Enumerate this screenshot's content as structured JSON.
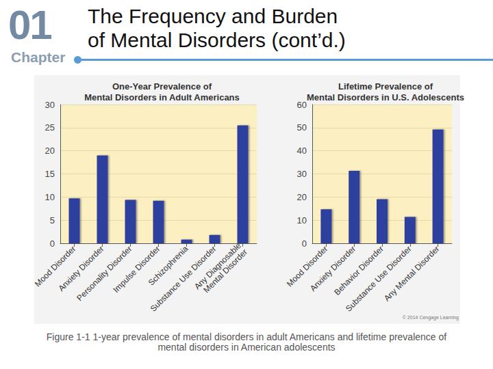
{
  "slide": {
    "chapter_number": "01",
    "chapter_label": "Chapter",
    "title_lines": [
      "The Frequency and Burden",
      "of Mental Disorders (cont’d.)"
    ],
    "caption": "Figure 1-1 1-year prevalence of mental disorders in adult Americans and lifetime prevalence of mental disorders in American adolescents",
    "credit": "© 2014 Cengage Learning"
  },
  "chart_data": [
    {
      "type": "bar",
      "title": "One-Year Prevalence of\nMental Disorders in Adult Americans",
      "categories": [
        "Mood Disorder",
        "Anxiety Disorder",
        "Personality Disorder",
        "Impulse Disorder",
        "Schizophrenia",
        "Substance Use Disorder",
        "Any Diagnosable\nMental Disorder"
      ],
      "values": [
        9.7,
        19.0,
        9.4,
        9.2,
        0.8,
        1.8,
        25.5
      ],
      "color": "#2f3f9e",
      "ylim": [
        0,
        30
      ],
      "yticks": [
        0,
        5,
        10,
        15,
        20,
        25,
        30
      ],
      "grid": true
    },
    {
      "type": "bar",
      "title": "Lifetime Prevalence of\nMental Disorders in U.S. Adolescents",
      "categories": [
        "Mood Disorder",
        "Anxiety Disorder",
        "Behavior Disorder",
        "Substance Use Disorder",
        "Any Mental Disorder"
      ],
      "values": [
        14.7,
        31.3,
        19.1,
        11.4,
        49.2
      ],
      "color": "#2f3f9e",
      "ylim": [
        0,
        60
      ],
      "yticks": [
        0,
        10,
        20,
        30,
        40,
        50,
        60
      ],
      "grid": true
    }
  ]
}
